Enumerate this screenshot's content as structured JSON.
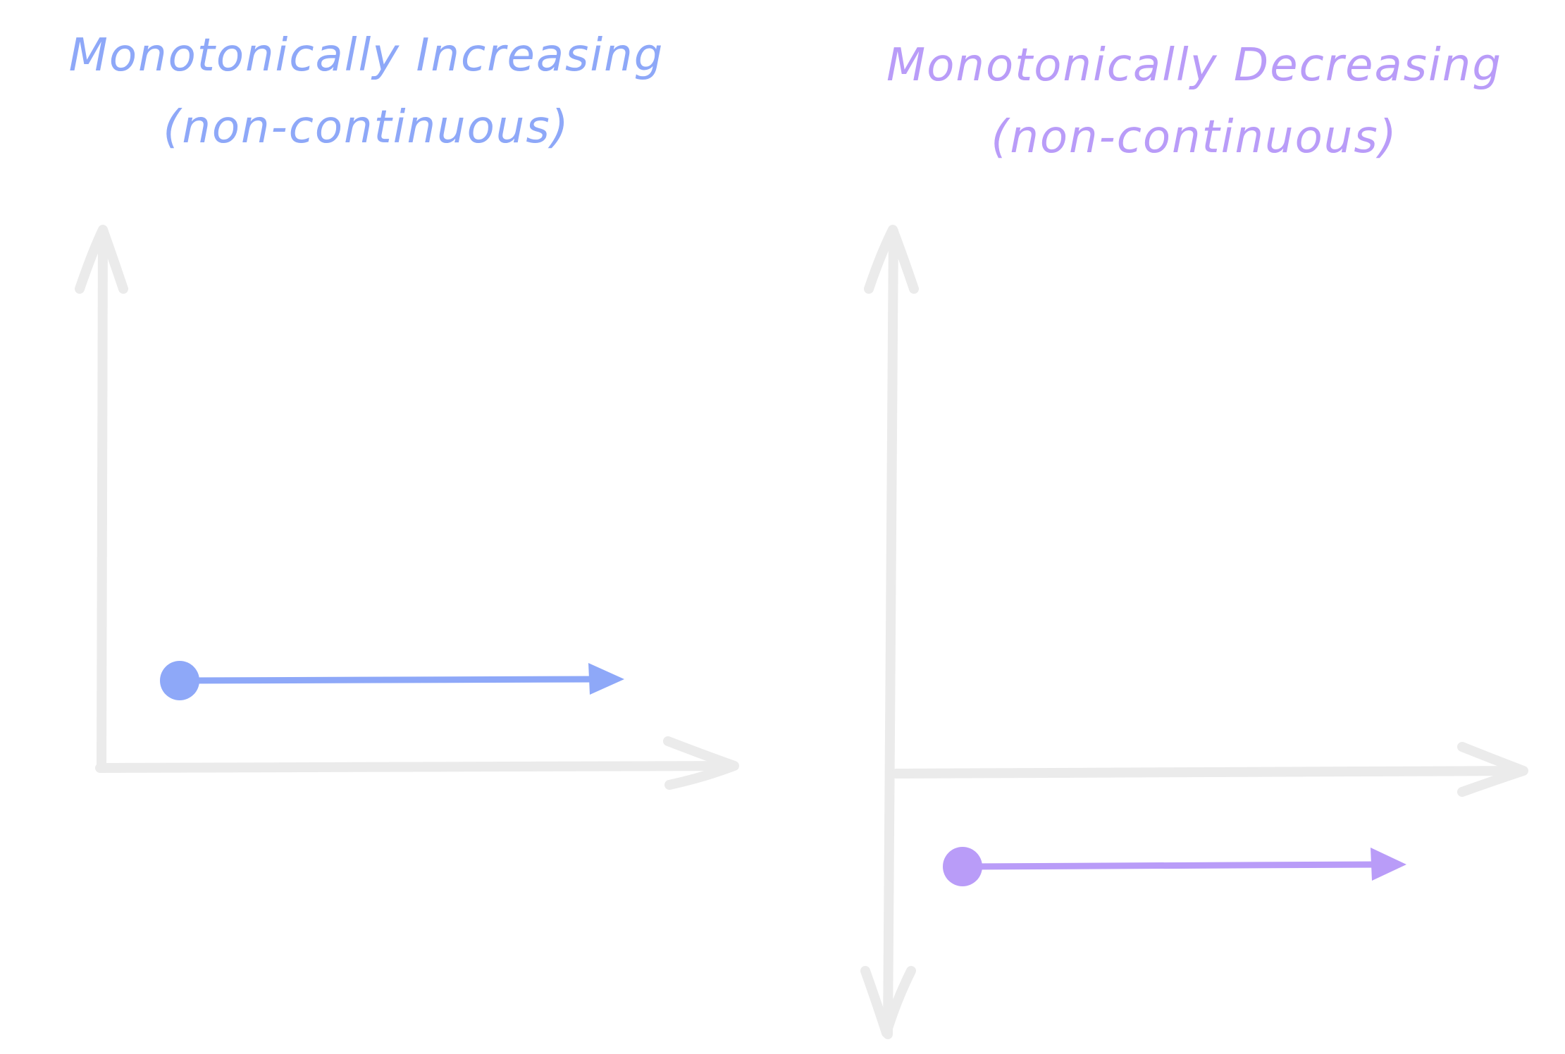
{
  "panels": [
    {
      "title_line1": "Monotonically Increasing",
      "title_line2": "(non-continuous)",
      "color": "#8ea8f8"
    },
    {
      "title_line1": "Monotonically Decreasing",
      "title_line2": "(non-continuous)",
      "color": "#b99cf8"
    }
  ],
  "axis_color": "#ebebeb"
}
